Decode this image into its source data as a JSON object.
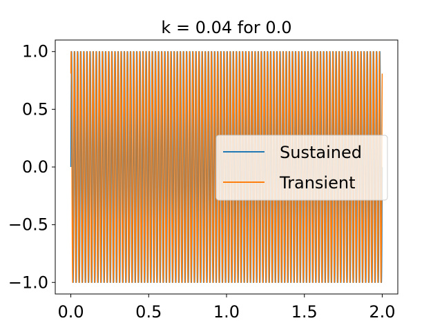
{
  "chart_data": {
    "type": "line",
    "title": "k = 0.04 for 0.0",
    "xlabel": "",
    "ylabel": "",
    "xlim": [
      -0.1,
      2.1
    ],
    "ylim": [
      -1.1,
      1.1
    ],
    "xticks": [
      0.0,
      0.5,
      1.0,
      1.5,
      2.0
    ],
    "xtick_labels": [
      "0.0",
      "0.5",
      "1.0",
      "1.5",
      "2.0"
    ],
    "yticks": [
      -1.0,
      -0.5,
      0.0,
      0.5,
      1.0
    ],
    "ytick_labels": [
      "−1.0",
      "−0.5",
      "0.0",
      "0.5",
      "1.0"
    ],
    "grid": false,
    "legend_position": "center-right",
    "series": [
      {
        "name": "Sustained",
        "color": "#1f77b4",
        "function": "sin",
        "frequency_hz": 50,
        "amplitude": 1.0,
        "x_range": [
          0.0,
          2.0
        ],
        "phase_cycles": 0.0
      },
      {
        "name": "Transient",
        "color": "#ff7f0e",
        "function": "sin",
        "frequency_hz": 50,
        "amplitude": 1.0,
        "x_range": [
          0.0,
          2.0
        ],
        "phase_cycles": 0.15
      }
    ]
  }
}
